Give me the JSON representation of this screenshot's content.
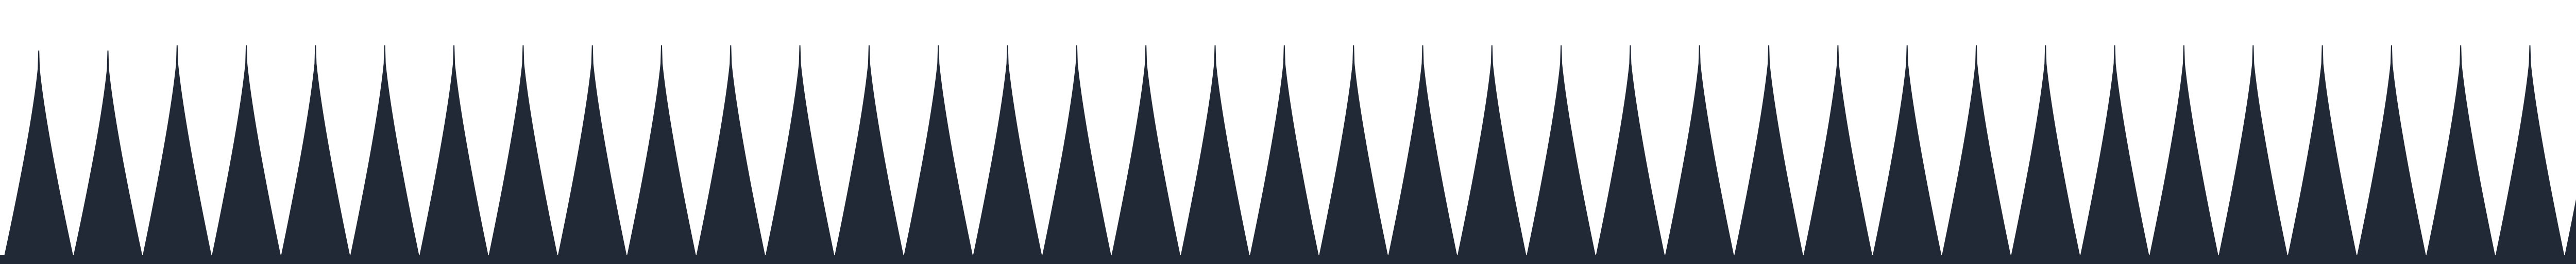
{
  "graphic": {
    "icon": "spike-border-icon",
    "fill_color": "#222936",
    "background_color": "#ffffff",
    "spike_count": 38
  }
}
